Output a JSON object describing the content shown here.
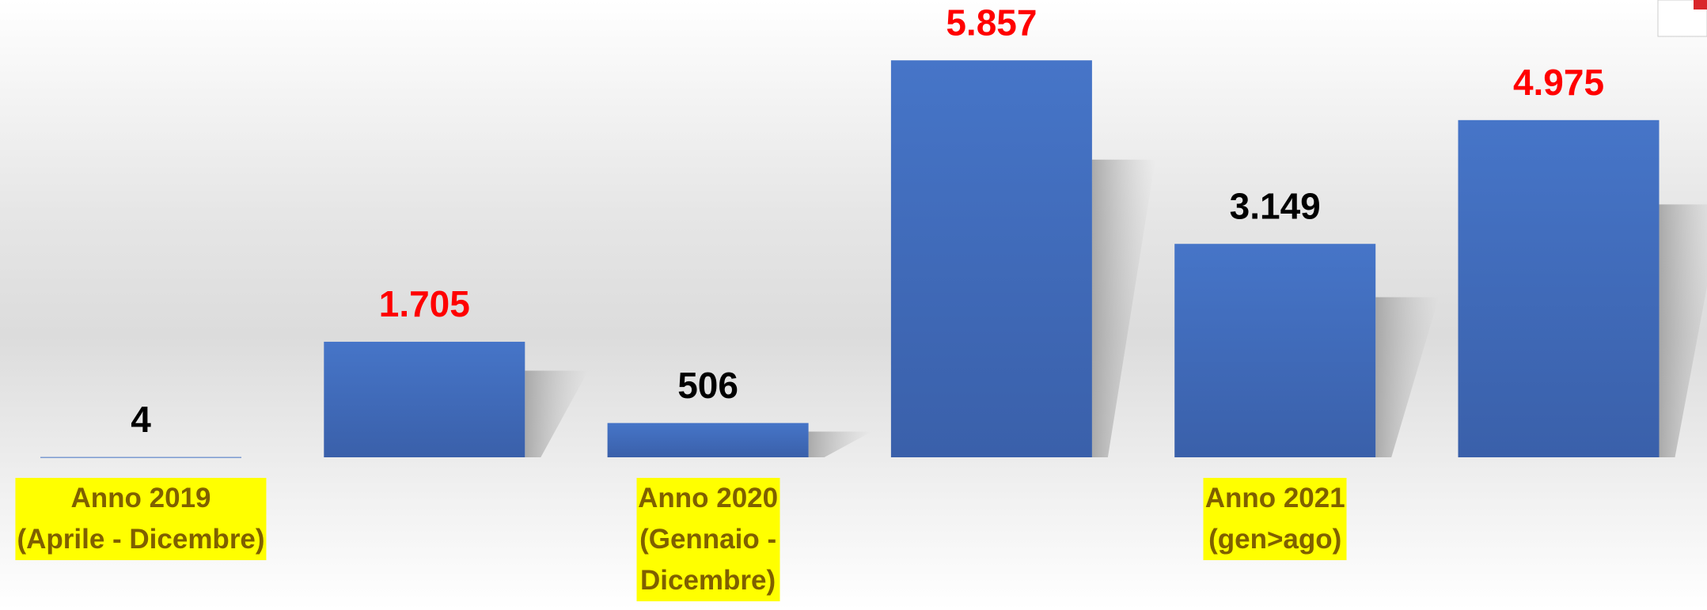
{
  "chart_data": {
    "type": "bar",
    "categories": [
      "Anno 2019\n(Aprile - Dicembre)",
      null,
      "Anno 2020\n(Gennaio -\nDicembre)",
      null,
      "Anno 2021\n(gen>ago)",
      null
    ],
    "values": [
      4,
      1705,
      506,
      5857,
      3149,
      4975
    ],
    "value_labels": [
      "4",
      "1.705",
      "506",
      "5.857",
      "3.149",
      "4.975"
    ],
    "value_label_colors": [
      "#000000",
      "#ff0000",
      "#000000",
      "#ff0000",
      "#000000",
      "#ff0000"
    ],
    "color": "#4472c4",
    "ylim": [
      0,
      6000
    ]
  }
}
